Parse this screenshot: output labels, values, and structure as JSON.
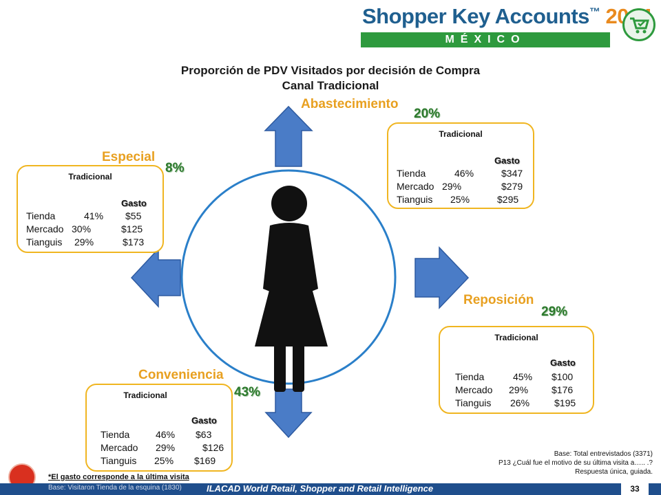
{
  "brand": {
    "title": "Shopper Key Accounts",
    "tm": "™",
    "year": "2014",
    "country": "MÉXICO"
  },
  "title": {
    "line1": "Proporción de PDV Visitados por decisión de Compra",
    "line2": "Canal Tradicional"
  },
  "categories": [
    {
      "id": "abastecimiento",
      "label": "Abastecimiento",
      "pct": "20%",
      "box": {
        "header": "Tradicional",
        "gasto": "Gasto",
        "rows": [
          {
            "name": "Tienda",
            "pct": "46%",
            "amount": "$347"
          },
          {
            "name": "Mercado",
            "pct": "29%",
            "amount": "$279"
          },
          {
            "name": "Tianguis",
            "pct": "25%",
            "amount": "$295"
          }
        ]
      }
    },
    {
      "id": "especial",
      "label": "Especial",
      "pct": "8%",
      "box": {
        "header": "Tradicional",
        "gasto": "Gasto",
        "rows": [
          {
            "name": "Tienda",
            "pct": "41%",
            "amount": "$55"
          },
          {
            "name": "Mercado",
            "pct": "30%",
            "amount": "$125"
          },
          {
            "name": "Tianguis",
            "pct": "29%",
            "amount": "$173"
          }
        ]
      }
    },
    {
      "id": "reposicion",
      "label": "Reposición",
      "pct": "29%",
      "box": {
        "header": "Tradicional",
        "gasto": "Gasto",
        "rows": [
          {
            "name": "Tienda",
            "pct": "45%",
            "amount": "$100"
          },
          {
            "name": "Mercado",
            "pct": "29%",
            "amount": "$176"
          },
          {
            "name": "Tianguis",
            "pct": "26%",
            "amount": "$195"
          }
        ]
      }
    },
    {
      "id": "conveniencia",
      "label": "Conveniencia",
      "pct": "43%",
      "box": {
        "header": "Tradicional",
        "gasto": "Gasto",
        "rows": [
          {
            "name": "Tienda",
            "pct": "46%",
            "amount": "$63"
          },
          {
            "name": "Mercado",
            "pct": "29%",
            "amount": "$126"
          },
          {
            "name": "Tianguis",
            "pct": "25%",
            "amount": "$169"
          }
        ]
      }
    }
  ],
  "notes": {
    "base_right": [
      "Base: Total entrevistados (3371)",
      "P13 ¿Cuál fue el motivo de su última visita a…..  .?",
      "Respuesta única, guiada."
    ],
    "gasto_note": "*El gasto corresponde a la última visita",
    "base_left": "Base: Visitaron Tienda de la esquina (1830)"
  },
  "footer": {
    "org": "ILACAD World Retail, Shopper and Retail Intelligence",
    "page": "33"
  },
  "colors": {
    "arrow": "#4a7cc7",
    "circle": "#2a7fc9",
    "box_border": "#f0b520",
    "category": "#e8a020",
    "pct": "#2d7a2d",
    "footer": "#1f4e8c"
  }
}
